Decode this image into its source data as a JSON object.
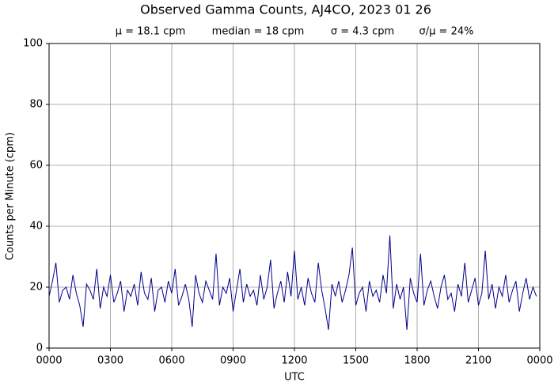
{
  "chart_data": {
    "type": "line",
    "title": "Observed Gamma Counts, AJ4CO, 2023 01 26",
    "subtitle": [
      "μ = 18.1 cpm",
      "median = 18 cpm",
      "σ = 4.3 cpm",
      "σ/μ = 24%"
    ],
    "xlabel": "UTC",
    "ylabel": "Counts per Minute (cpm)",
    "xlim": [
      0,
      1440
    ],
    "ylim": [
      0,
      100
    ],
    "xticks": [
      {
        "value": 0,
        "label": "0000"
      },
      {
        "value": 180,
        "label": "0300"
      },
      {
        "value": 360,
        "label": "0600"
      },
      {
        "value": 540,
        "label": "0900"
      },
      {
        "value": 720,
        "label": "1200"
      },
      {
        "value": 900,
        "label": "1500"
      },
      {
        "value": 1080,
        "label": "1800"
      },
      {
        "value": 1260,
        "label": "2100"
      },
      {
        "value": 1440,
        "label": "0000"
      }
    ],
    "yticks": [
      0,
      20,
      40,
      60,
      80,
      100
    ],
    "grid": true,
    "x": [
      0,
      10,
      20,
      30,
      40,
      50,
      60,
      70,
      80,
      90,
      100,
      110,
      120,
      130,
      140,
      150,
      160,
      170,
      180,
      190,
      200,
      210,
      220,
      230,
      240,
      250,
      260,
      270,
      280,
      290,
      300,
      310,
      320,
      330,
      340,
      350,
      360,
      370,
      380,
      390,
      400,
      410,
      420,
      430,
      440,
      450,
      460,
      470,
      480,
      490,
      500,
      510,
      520,
      530,
      540,
      550,
      560,
      570,
      580,
      590,
      600,
      610,
      620,
      630,
      640,
      650,
      660,
      670,
      680,
      690,
      700,
      710,
      720,
      730,
      740,
      750,
      760,
      770,
      780,
      790,
      800,
      810,
      820,
      830,
      840,
      850,
      860,
      870,
      880,
      890,
      900,
      910,
      920,
      930,
      940,
      950,
      960,
      970,
      980,
      990,
      1000,
      1010,
      1020,
      1030,
      1040,
      1050,
      1060,
      1070,
      1080,
      1090,
      1100,
      1110,
      1120,
      1130,
      1140,
      1150,
      1160,
      1170,
      1180,
      1190,
      1200,
      1210,
      1220,
      1230,
      1240,
      1250,
      1260,
      1270,
      1280,
      1290,
      1300,
      1310,
      1320,
      1330,
      1340,
      1350,
      1360,
      1370,
      1380,
      1390,
      1400,
      1410,
      1420,
      1430
    ],
    "series": [
      {
        "name": "cpm",
        "color": "#00008b",
        "values": [
          17,
          22,
          28,
          15,
          19,
          20,
          16,
          24,
          18,
          14,
          7,
          21,
          19,
          16,
          26,
          13,
          20,
          17,
          24,
          15,
          18,
          22,
          12,
          19,
          17,
          21,
          14,
          25,
          18,
          16,
          23,
          12,
          19,
          20,
          15,
          22,
          18,
          26,
          14,
          17,
          21,
          16,
          7,
          24,
          18,
          15,
          22,
          19,
          16,
          31,
          14,
          20,
          18,
          23,
          12,
          19,
          26,
          15,
          21,
          17,
          19,
          14,
          24,
          16,
          20,
          29,
          13,
          18,
          22,
          15,
          25,
          17,
          32,
          16,
          20,
          14,
          23,
          18,
          15,
          28,
          19,
          13,
          6,
          21,
          17,
          22,
          15,
          19,
          24,
          33,
          14,
          18,
          20,
          12,
          22,
          17,
          19,
          15,
          24,
          18,
          37,
          13,
          21,
          16,
          20,
          6,
          23,
          18,
          15,
          31,
          14,
          19,
          22,
          17,
          13,
          20,
          24,
          16,
          18,
          12,
          21,
          17,
          28,
          15,
          19,
          23,
          14,
          18,
          32,
          16,
          21,
          13,
          20,
          17,
          24,
          15,
          19,
          22,
          12,
          18,
          23,
          16,
          20,
          17
        ]
      }
    ]
  }
}
